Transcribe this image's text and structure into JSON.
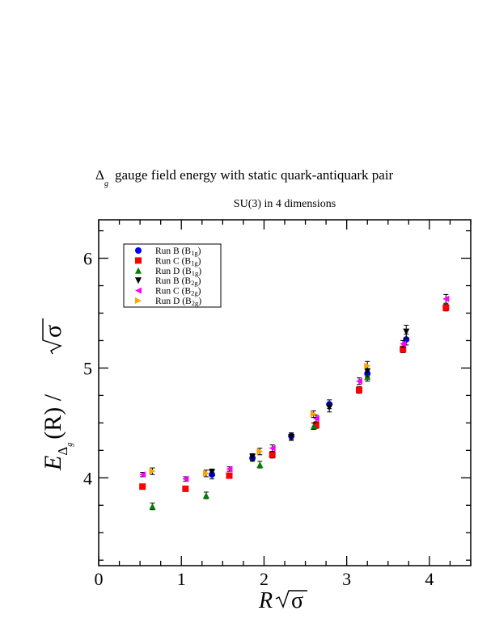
{
  "chart_data": {
    "type": "scatter",
    "title": "gauge field energy with static quark-antiquark pair",
    "title_symbol": "Δ",
    "title_symbol_sub": "g",
    "subtitle": "SU(3) in 4 dimensions",
    "xlabel": {
      "var": "R",
      "root": "σ"
    },
    "ylabel": {
      "var": "E",
      "sub_sym": "Δ",
      "sub_sub": "g",
      "arg": "(R) /",
      "root": "σ"
    },
    "xlim": [
      0,
      4.5
    ],
    "ylim": [
      3.2,
      6.35
    ],
    "xticks": [
      "0",
      "1",
      "2",
      "3",
      "4"
    ],
    "yticks": [
      "4",
      "5",
      "6"
    ],
    "grid": false,
    "legend_position": "top-left",
    "series": [
      {
        "name": "Run B (B1g)",
        "label": "Run B (B",
        "sub": "1g",
        "tail": ")",
        "color": "#0000ff",
        "marker": "circle",
        "points": [
          [
            1.37,
            4.03,
            0.04
          ],
          [
            1.86,
            4.18,
            0.03
          ],
          [
            2.33,
            4.38,
            0.03
          ],
          [
            2.79,
            4.67,
            0.04
          ],
          [
            3.25,
            4.95,
            0.04
          ],
          [
            3.72,
            5.26,
            0.05
          ]
        ]
      },
      {
        "name": "Run C (B1g)",
        "label": "Run C (B",
        "sub": "1g",
        "tail": ")",
        "color": "#ff0000",
        "marker": "square",
        "points": [
          [
            0.53,
            3.92,
            0.02
          ],
          [
            1.05,
            3.9,
            0.02
          ],
          [
            1.58,
            4.02,
            0.02
          ],
          [
            2.1,
            4.21,
            0.03
          ],
          [
            2.63,
            4.48,
            0.03
          ],
          [
            3.15,
            4.8,
            0.03
          ],
          [
            3.68,
            5.17,
            0.03
          ],
          [
            4.2,
            5.55,
            0.03
          ]
        ]
      },
      {
        "name": "Run D (B1g)",
        "label": "Run D (B",
        "sub": "1g",
        "tail": ")",
        "color": "#008000",
        "marker": "triangle-up",
        "points": [
          [
            0.65,
            3.74,
            0.03
          ],
          [
            1.3,
            3.84,
            0.03
          ],
          [
            1.95,
            4.12,
            0.03
          ],
          [
            2.6,
            4.47,
            0.03
          ],
          [
            3.25,
            4.92,
            0.04
          ]
        ]
      },
      {
        "name": "Run B (B2g)",
        "label": "Run B (B",
        "sub": "2g",
        "tail": ")",
        "color": "#000000",
        "marker": "triangle-down",
        "points": [
          [
            1.37,
            4.05,
            0.03
          ],
          [
            1.86,
            4.19,
            0.03
          ],
          [
            2.33,
            4.37,
            0.03
          ],
          [
            2.79,
            4.64,
            0.04
          ],
          [
            3.25,
            4.97,
            0.05
          ],
          [
            3.72,
            5.33,
            0.06
          ]
        ]
      },
      {
        "name": "Run C (B2g)",
        "label": "Run C (B",
        "sub": "2g",
        "tail": ")",
        "color": "#ff00ff",
        "marker": "triangle-left",
        "points": [
          [
            0.53,
            4.03,
            0.02
          ],
          [
            1.05,
            3.99,
            0.02
          ],
          [
            1.58,
            4.08,
            0.02
          ],
          [
            2.1,
            4.27,
            0.03
          ],
          [
            2.63,
            4.54,
            0.03
          ],
          [
            3.15,
            4.88,
            0.03
          ],
          [
            3.68,
            5.22,
            0.03
          ],
          [
            4.2,
            5.63,
            0.04
          ]
        ]
      },
      {
        "name": "Run D (B2g)",
        "label": "Run D (B",
        "sub": "2g",
        "tail": ")",
        "color": "#ffa500",
        "marker": "triangle-right",
        "points": [
          [
            0.65,
            4.06,
            0.03
          ],
          [
            1.3,
            4.04,
            0.03
          ],
          [
            1.95,
            4.24,
            0.03
          ],
          [
            2.6,
            4.58,
            0.03
          ],
          [
            3.25,
            5.02,
            0.04
          ]
        ]
      }
    ]
  }
}
